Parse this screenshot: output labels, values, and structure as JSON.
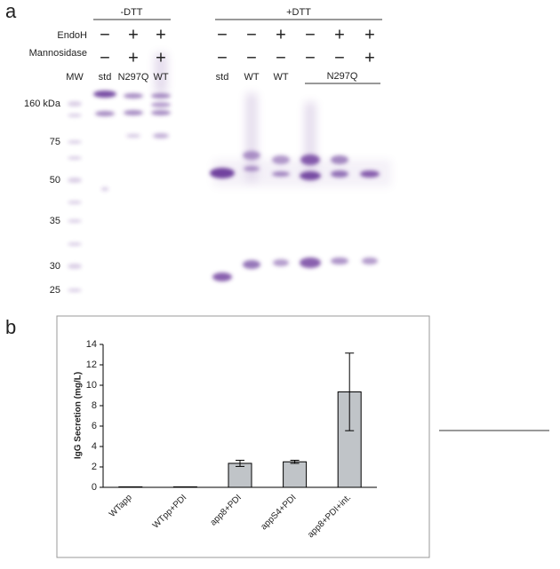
{
  "panels": {
    "a": "a",
    "b": "b"
  },
  "gel": {
    "groups": [
      "-DTT",
      "+DTT"
    ],
    "row_labels": [
      "EndoH",
      "Mannosidase"
    ],
    "endoh": [
      "−",
      "+",
      "+",
      "−",
      "−",
      "+",
      "−",
      "+",
      "+"
    ],
    "mannosidase": [
      "−",
      "+",
      "+",
      "−",
      "−",
      "−",
      "−",
      "−",
      "+"
    ],
    "lanes": [
      "MW",
      "std",
      "N297Q",
      "WT",
      "std",
      "WT",
      "WT"
    ],
    "lane_group": "N297Q",
    "markers": [
      "160 kDa",
      "75",
      "50",
      "35",
      "30",
      "25"
    ]
  },
  "chart_data": {
    "type": "bar",
    "categories": [
      "WTapp",
      "WTpp+PDI",
      "app8+PDI",
      "appS4+PDI",
      "app8+PDI+int."
    ],
    "values": [
      0.05,
      0.05,
      2.35,
      2.5,
      9.35
    ],
    "errors": [
      0,
      0,
      0.3,
      0.15,
      3.8
    ],
    "color": "#c0c4c8",
    "y_label": "IgG Secretion (mg/L)",
    "ylim": [
      0,
      14
    ],
    "yticks": [
      0,
      2,
      4,
      6,
      8,
      10,
      12,
      14
    ]
  }
}
